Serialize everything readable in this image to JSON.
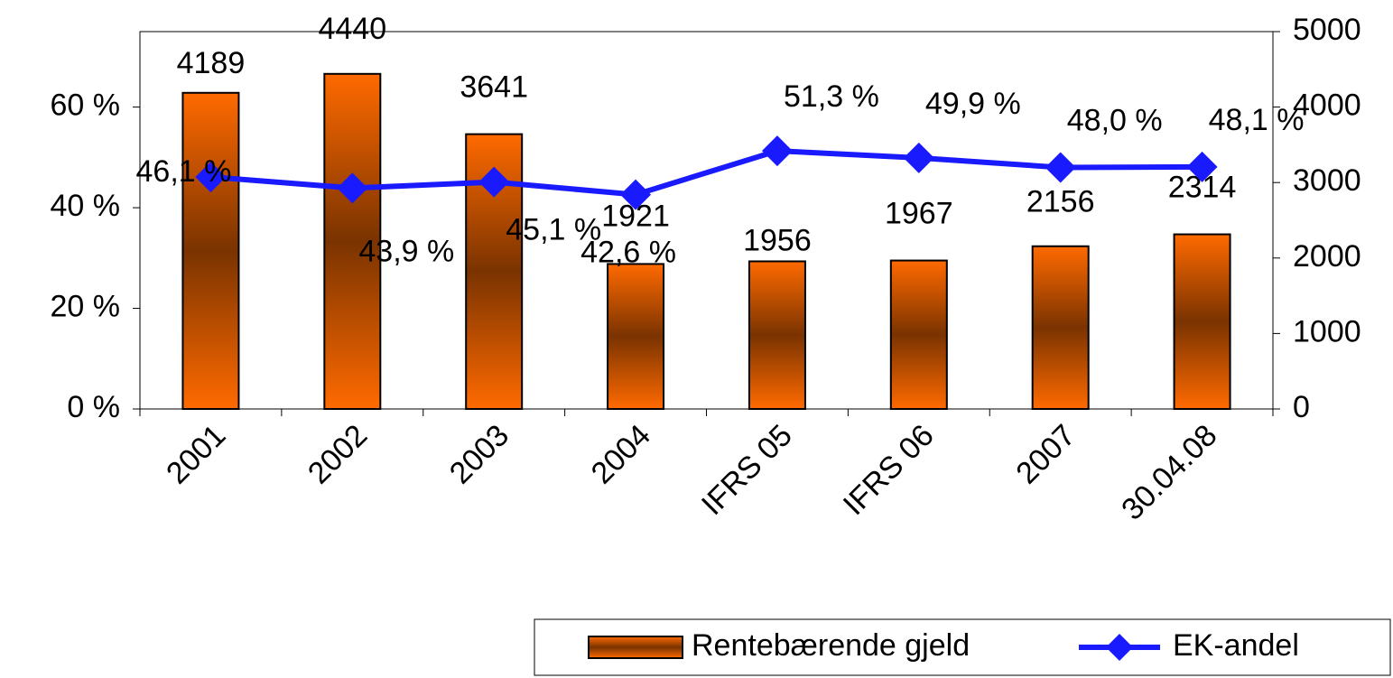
{
  "chart_data": {
    "type": "bar_line",
    "categories": [
      "2001",
      "2002",
      "2003",
      "2004",
      "IFRS 05",
      "IFRS 06",
      "2007",
      "30.04.08"
    ],
    "series": [
      {
        "name": "Rentebærende gjeld",
        "type": "bar",
        "axis": "y2",
        "color": "#ff6600",
        "values": [
          4189,
          4440,
          3641,
          1921,
          1956,
          1967,
          2156,
          2314
        ]
      },
      {
        "name": "EK-andel",
        "type": "line",
        "axis": "y",
        "color": "#1a1aff",
        "values": [
          46.1,
          43.9,
          45.1,
          42.6,
          51.3,
          49.9,
          48.0,
          48.1
        ],
        "value_labels": [
          "46,1 %",
          "43,9 %",
          "45,1 %",
          "42,6 %",
          "51,3 %",
          "49,9 %",
          "48,0 %",
          "48,1 %"
        ]
      }
    ],
    "ylim": [
      0,
      75
    ],
    "yticks": [
      {
        "value": 0,
        "label": "0 %"
      },
      {
        "value": 20,
        "label": "20 %"
      },
      {
        "value": 40,
        "label": "40 %"
      },
      {
        "value": 60,
        "label": "60 %"
      }
    ],
    "y2lim": [
      0,
      5000
    ],
    "y2ticks": [
      0,
      1000,
      2000,
      3000,
      4000,
      5000
    ],
    "legend": "bottom-right"
  }
}
